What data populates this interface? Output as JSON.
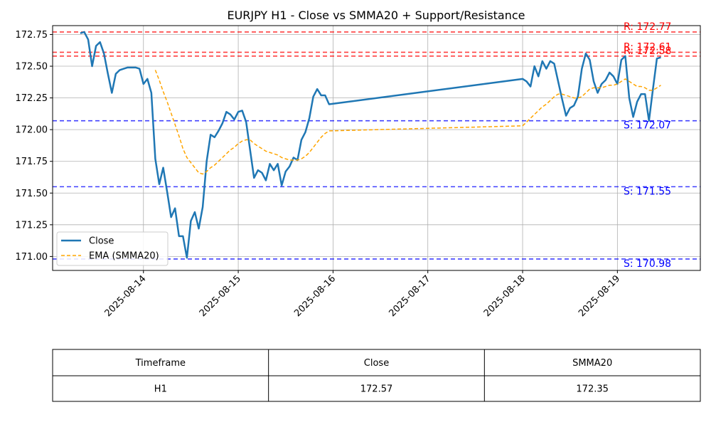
{
  "chart_data": {
    "type": "line",
    "title": "EURJPY H1 - Close vs SMMA20 + Support/Resistance",
    "ylim": [
      170.89,
      172.82
    ],
    "xlim": [
      "2025-08-13T01:00",
      "2025-08-19T21:00"
    ],
    "y_ticks": [
      171.0,
      171.25,
      171.5,
      171.75,
      172.0,
      172.25,
      172.5,
      172.75
    ],
    "y_tick_labels": [
      "171.00",
      "171.25",
      "171.50",
      "171.75",
      "172.00",
      "172.25",
      "172.50",
      "172.75"
    ],
    "x_ticks": [
      "2025-08-14",
      "2025-08-15",
      "2025-08-16",
      "2025-08-17",
      "2025-08-18",
      "2025-08-19"
    ],
    "grid": true,
    "legend_position": "lower-left",
    "series": [
      {
        "name": "Close",
        "color": "#1f77b4",
        "style": "solid",
        "points": [
          [
            "2025-08-13T08:00",
            172.76
          ],
          [
            "2025-08-13T09:00",
            172.77
          ],
          [
            "2025-08-13T10:00",
            172.71
          ],
          [
            "2025-08-13T11:00",
            172.5
          ],
          [
            "2025-08-13T12:00",
            172.66
          ],
          [
            "2025-08-13T13:00",
            172.69
          ],
          [
            "2025-08-13T14:00",
            172.6
          ],
          [
            "2025-08-13T15:00",
            172.44
          ],
          [
            "2025-08-13T16:00",
            172.29
          ],
          [
            "2025-08-13T17:00",
            172.44
          ],
          [
            "2025-08-13T18:00",
            172.47
          ],
          [
            "2025-08-13T19:00",
            172.48
          ],
          [
            "2025-08-13T20:00",
            172.49
          ],
          [
            "2025-08-13T21:00",
            172.49
          ],
          [
            "2025-08-13T22:00",
            172.49
          ],
          [
            "2025-08-13T23:00",
            172.48
          ],
          [
            "2025-08-14T00:00",
            172.36
          ],
          [
            "2025-08-14T01:00",
            172.4
          ],
          [
            "2025-08-14T02:00",
            172.29
          ],
          [
            "2025-08-14T03:00",
            171.77
          ],
          [
            "2025-08-14T04:00",
            171.57
          ],
          [
            "2025-08-14T05:00",
            171.7
          ],
          [
            "2025-08-14T06:00",
            171.51
          ],
          [
            "2025-08-14T07:00",
            171.31
          ],
          [
            "2025-08-14T08:00",
            171.38
          ],
          [
            "2025-08-14T09:00",
            171.16
          ],
          [
            "2025-08-14T10:00",
            171.16
          ],
          [
            "2025-08-14T11:00",
            170.99
          ],
          [
            "2025-08-14T12:00",
            171.28
          ],
          [
            "2025-08-14T13:00",
            171.35
          ],
          [
            "2025-08-14T14:00",
            171.22
          ],
          [
            "2025-08-14T15:00",
            171.39
          ],
          [
            "2025-08-14T16:00",
            171.75
          ],
          [
            "2025-08-14T17:00",
            171.96
          ],
          [
            "2025-08-14T18:00",
            171.94
          ],
          [
            "2025-08-14T19:00",
            171.99
          ],
          [
            "2025-08-14T20:00",
            172.05
          ],
          [
            "2025-08-14T21:00",
            172.14
          ],
          [
            "2025-08-14T22:00",
            172.12
          ],
          [
            "2025-08-14T23:00",
            172.08
          ],
          [
            "2025-08-15T00:00",
            172.14
          ],
          [
            "2025-08-15T01:00",
            172.15
          ],
          [
            "2025-08-15T02:00",
            172.06
          ],
          [
            "2025-08-15T03:00",
            171.84
          ],
          [
            "2025-08-15T04:00",
            171.62
          ],
          [
            "2025-08-15T05:00",
            171.68
          ],
          [
            "2025-08-15T06:00",
            171.66
          ],
          [
            "2025-08-15T07:00",
            171.6
          ],
          [
            "2025-08-15T08:00",
            171.73
          ],
          [
            "2025-08-15T09:00",
            171.68
          ],
          [
            "2025-08-15T10:00",
            171.73
          ],
          [
            "2025-08-15T11:00",
            171.56
          ],
          [
            "2025-08-15T12:00",
            171.67
          ],
          [
            "2025-08-15T13:00",
            171.71
          ],
          [
            "2025-08-15T14:00",
            171.78
          ],
          [
            "2025-08-15T15:00",
            171.76
          ],
          [
            "2025-08-15T16:00",
            171.92
          ],
          [
            "2025-08-15T17:00",
            171.98
          ],
          [
            "2025-08-15T18:00",
            172.09
          ],
          [
            "2025-08-15T19:00",
            172.26
          ],
          [
            "2025-08-15T20:00",
            172.32
          ],
          [
            "2025-08-15T21:00",
            172.27
          ],
          [
            "2025-08-15T22:00",
            172.27
          ],
          [
            "2025-08-15T23:00",
            172.2
          ],
          [
            "2025-08-18T00:00",
            172.4
          ],
          [
            "2025-08-18T01:00",
            172.38
          ],
          [
            "2025-08-18T02:00",
            172.34
          ],
          [
            "2025-08-18T03:00",
            172.5
          ],
          [
            "2025-08-18T04:00",
            172.42
          ],
          [
            "2025-08-18T05:00",
            172.54
          ],
          [
            "2025-08-18T06:00",
            172.48
          ],
          [
            "2025-08-18T07:00",
            172.54
          ],
          [
            "2025-08-18T08:00",
            172.52
          ],
          [
            "2025-08-18T09:00",
            172.38
          ],
          [
            "2025-08-18T10:00",
            172.24
          ],
          [
            "2025-08-18T11:00",
            172.11
          ],
          [
            "2025-08-18T12:00",
            172.17
          ],
          [
            "2025-08-18T13:00",
            172.19
          ],
          [
            "2025-08-18T14:00",
            172.26
          ],
          [
            "2025-08-18T15:00",
            172.48
          ],
          [
            "2025-08-18T16:00",
            172.6
          ],
          [
            "2025-08-18T17:00",
            172.55
          ],
          [
            "2025-08-18T18:00",
            172.38
          ],
          [
            "2025-08-18T19:00",
            172.29
          ],
          [
            "2025-08-18T20:00",
            172.36
          ],
          [
            "2025-08-18T21:00",
            172.39
          ],
          [
            "2025-08-18T22:00",
            172.45
          ],
          [
            "2025-08-18T23:00",
            172.42
          ],
          [
            "2025-08-19T00:00",
            172.36
          ],
          [
            "2025-08-19T01:00",
            172.55
          ],
          [
            "2025-08-19T02:00",
            172.58
          ],
          [
            "2025-08-19T03:00",
            172.25
          ],
          [
            "2025-08-19T04:00",
            172.1
          ],
          [
            "2025-08-19T05:00",
            172.22
          ],
          [
            "2025-08-19T06:00",
            172.28
          ],
          [
            "2025-08-19T07:00",
            172.28
          ],
          [
            "2025-08-19T08:00",
            172.07
          ],
          [
            "2025-08-19T09:00",
            172.32
          ],
          [
            "2025-08-19T10:00",
            172.56
          ],
          [
            "2025-08-19T11:00",
            172.57
          ]
        ]
      },
      {
        "name": "EMA (SMMA20)",
        "color": "#ffa500",
        "style": "dashed",
        "points": [
          [
            "2025-08-14T03:00",
            172.47
          ],
          [
            "2025-08-14T04:00",
            172.39
          ],
          [
            "2025-08-14T05:00",
            172.3
          ],
          [
            "2025-08-14T06:00",
            172.22
          ],
          [
            "2025-08-14T07:00",
            172.13
          ],
          [
            "2025-08-14T08:00",
            172.04
          ],
          [
            "2025-08-14T09:00",
            171.95
          ],
          [
            "2025-08-14T10:00",
            171.85
          ],
          [
            "2025-08-14T11:00",
            171.78
          ],
          [
            "2025-08-14T12:00",
            171.74
          ],
          [
            "2025-08-14T13:00",
            171.7
          ],
          [
            "2025-08-14T14:00",
            171.66
          ],
          [
            "2025-08-14T15:00",
            171.65
          ],
          [
            "2025-08-14T16:00",
            171.67
          ],
          [
            "2025-08-14T17:00",
            171.7
          ],
          [
            "2025-08-14T18:00",
            171.72
          ],
          [
            "2025-08-14T19:00",
            171.75
          ],
          [
            "2025-08-14T20:00",
            171.78
          ],
          [
            "2025-08-14T21:00",
            171.81
          ],
          [
            "2025-08-14T22:00",
            171.84
          ],
          [
            "2025-08-14T23:00",
            171.86
          ],
          [
            "2025-08-15T00:00",
            171.89
          ],
          [
            "2025-08-15T01:00",
            171.91
          ],
          [
            "2025-08-15T02:00",
            171.92
          ],
          [
            "2025-08-15T03:00",
            171.92
          ],
          [
            "2025-08-15T04:00",
            171.89
          ],
          [
            "2025-08-15T05:00",
            171.87
          ],
          [
            "2025-08-15T06:00",
            171.85
          ],
          [
            "2025-08-15T07:00",
            171.83
          ],
          [
            "2025-08-15T08:00",
            171.82
          ],
          [
            "2025-08-15T09:00",
            171.81
          ],
          [
            "2025-08-15T10:00",
            171.8
          ],
          [
            "2025-08-15T11:00",
            171.78
          ],
          [
            "2025-08-15T12:00",
            171.77
          ],
          [
            "2025-08-15T13:00",
            171.76
          ],
          [
            "2025-08-15T14:00",
            171.76
          ],
          [
            "2025-08-15T15:00",
            171.76
          ],
          [
            "2025-08-15T16:00",
            171.77
          ],
          [
            "2025-08-15T17:00",
            171.79
          ],
          [
            "2025-08-15T18:00",
            171.82
          ],
          [
            "2025-08-15T19:00",
            171.86
          ],
          [
            "2025-08-15T20:00",
            171.9
          ],
          [
            "2025-08-15T21:00",
            171.94
          ],
          [
            "2025-08-15T22:00",
            171.97
          ],
          [
            "2025-08-15T23:00",
            171.99
          ],
          [
            "2025-08-18T00:00",
            172.03
          ],
          [
            "2025-08-18T01:00",
            172.06
          ],
          [
            "2025-08-18T02:00",
            172.09
          ],
          [
            "2025-08-18T03:00",
            172.12
          ],
          [
            "2025-08-18T04:00",
            172.15
          ],
          [
            "2025-08-18T05:00",
            172.18
          ],
          [
            "2025-08-18T06:00",
            172.2
          ],
          [
            "2025-08-18T07:00",
            172.23
          ],
          [
            "2025-08-18T08:00",
            172.26
          ],
          [
            "2025-08-18T09:00",
            172.28
          ],
          [
            "2025-08-18T10:00",
            172.28
          ],
          [
            "2025-08-18T11:00",
            172.27
          ],
          [
            "2025-08-18T12:00",
            172.26
          ],
          [
            "2025-08-18T13:00",
            172.25
          ],
          [
            "2025-08-18T14:00",
            172.25
          ],
          [
            "2025-08-18T15:00",
            172.26
          ],
          [
            "2025-08-18T16:00",
            172.29
          ],
          [
            "2025-08-18T17:00",
            172.32
          ],
          [
            "2025-08-18T18:00",
            172.33
          ],
          [
            "2025-08-18T19:00",
            172.33
          ],
          [
            "2025-08-18T20:00",
            172.33
          ],
          [
            "2025-08-18T21:00",
            172.34
          ],
          [
            "2025-08-18T22:00",
            172.35
          ],
          [
            "2025-08-18T23:00",
            172.35
          ],
          [
            "2025-08-19T00:00",
            172.36
          ],
          [
            "2025-08-19T01:00",
            172.38
          ],
          [
            "2025-08-19T02:00",
            172.4
          ],
          [
            "2025-08-19T03:00",
            172.38
          ],
          [
            "2025-08-19T04:00",
            172.36
          ],
          [
            "2025-08-19T05:00",
            172.34
          ],
          [
            "2025-08-19T06:00",
            172.34
          ],
          [
            "2025-08-19T07:00",
            172.33
          ],
          [
            "2025-08-19T08:00",
            172.31
          ],
          [
            "2025-08-19T09:00",
            172.31
          ],
          [
            "2025-08-19T10:00",
            172.33
          ],
          [
            "2025-08-19T11:00",
            172.35
          ]
        ]
      }
    ],
    "levels": [
      {
        "kind": "resistance",
        "label": "R: 172.77",
        "value": 172.77,
        "color": "#ff0000"
      },
      {
        "kind": "resistance",
        "label": "R: 172.61",
        "value": 172.61,
        "color": "#ff0000"
      },
      {
        "kind": "resistance",
        "label": "R: 172.58",
        "value": 172.58,
        "color": "#ff0000"
      },
      {
        "kind": "support",
        "label": "S: 172.07",
        "value": 172.07,
        "color": "#0000ff"
      },
      {
        "kind": "support",
        "label": "S: 171.55",
        "value": 171.55,
        "color": "#0000ff"
      },
      {
        "kind": "support",
        "label": "S: 170.98",
        "value": 170.98,
        "color": "#0000ff"
      }
    ]
  },
  "table": {
    "headers": [
      "Timeframe",
      "Close",
      "SMMA20"
    ],
    "rows": [
      [
        "H1",
        "172.57",
        "172.35"
      ]
    ]
  }
}
